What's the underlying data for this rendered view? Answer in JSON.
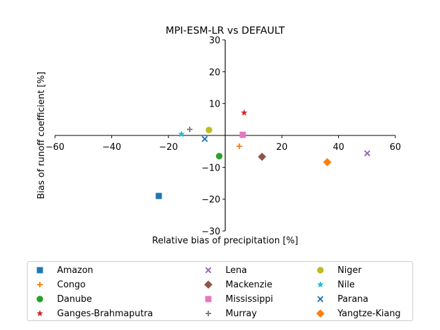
{
  "chart_data": {
    "type": "scatter",
    "title": "MPI-ESM-LR vs DEFAULT",
    "xlabel": "Relative bias of precipitation [%]",
    "ylabel": "Bias of runoff coefficient [%]",
    "xlim": [
      -60,
      60
    ],
    "ylim": [
      -30,
      30
    ],
    "xticks": [
      -60,
      -40,
      -20,
      20,
      40,
      60
    ],
    "yticks": [
      -30,
      -20,
      -10,
      10,
      20,
      30
    ],
    "xtick_labels": [
      "−60",
      "−40",
      "−20",
      "20",
      "40",
      "60"
    ],
    "ytick_labels": [
      "−30",
      "−20",
      "−10",
      "10",
      "20",
      "30"
    ],
    "grid": false,
    "legend_placement": "below",
    "legend_columns": 3,
    "series": [
      {
        "name": "Amazon",
        "marker": "square",
        "color": "#1f77b4",
        "x": -23.4,
        "y": -19.0
      },
      {
        "name": "Congo",
        "marker": "plus",
        "color": "#ff7f0e",
        "x": 5.0,
        "y": -3.4
      },
      {
        "name": "Danube",
        "marker": "circle",
        "color": "#2ca02c",
        "x": -2.1,
        "y": -6.5
      },
      {
        "name": "Ganges-Brahmaputra",
        "marker": "star",
        "color": "#d62728",
        "x": 6.7,
        "y": 7.1
      },
      {
        "name": "Lena",
        "marker": "x",
        "color": "#9467bd",
        "x": 50.1,
        "y": -5.6
      },
      {
        "name": "Mackenzie",
        "marker": "diamond",
        "color": "#8c564b",
        "x": 13.0,
        "y": -6.7
      },
      {
        "name": "Mississippi",
        "marker": "square",
        "color": "#e377c2",
        "x": 6.2,
        "y": 0.2
      },
      {
        "name": "Murray",
        "marker": "plus",
        "color": "#7f7f7f",
        "x": -12.5,
        "y": 1.9
      },
      {
        "name": "Niger",
        "marker": "circle",
        "color": "#bcbd22",
        "x": -5.7,
        "y": 1.7
      },
      {
        "name": "Nile",
        "marker": "star",
        "color": "#17becf",
        "x": -15.4,
        "y": 0.4
      },
      {
        "name": "Parana",
        "marker": "x",
        "color": "#1f77b4",
        "x": -7.2,
        "y": -1.1
      },
      {
        "name": "Yangtze-Kiang",
        "marker": "diamond",
        "color": "#ff7f0e",
        "x": 36.0,
        "y": -8.4
      }
    ]
  }
}
